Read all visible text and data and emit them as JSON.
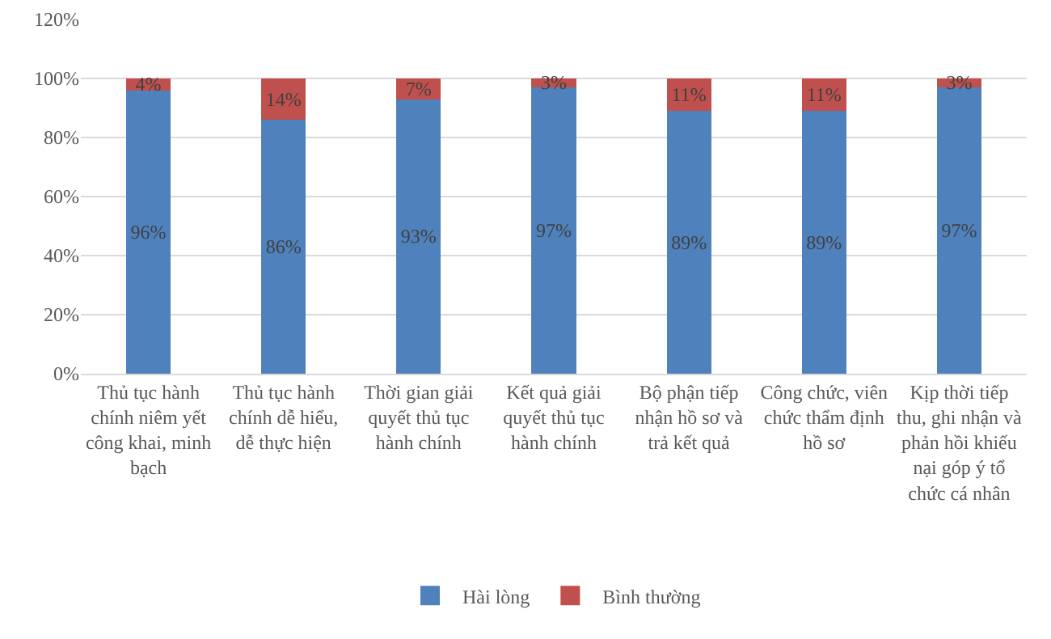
{
  "chart_data": {
    "type": "bar",
    "stacked": true,
    "categories": [
      "Thủ tục hành chính niêm yết công khai, minh bạch",
      "Thủ tục hành chính dễ hiểu, dễ thực hiện",
      "Thời gian giải quyết thủ tục hành chính",
      "Kết quả giải quyết thủ tục hành chính",
      "Bộ phận tiếp nhận hồ sơ và trả kết quả",
      "Công chức, viên chức thẩm định hồ sơ",
      "Kịp thời tiếp thu, ghi nhận và phản hồi khiếu nại góp ý tổ chức cá nhân"
    ],
    "series": [
      {
        "name": "Hài lòng",
        "color": "#4f81bd",
        "values": [
          96,
          86,
          93,
          97,
          89,
          89,
          97
        ],
        "value_labels": [
          "96%",
          "86%",
          "93%",
          "97%",
          "89%",
          "89%",
          "97%"
        ]
      },
      {
        "name": "Bình thường",
        "color": "#c0504d",
        "values": [
          4,
          14,
          7,
          3,
          11,
          11,
          3
        ],
        "value_labels": [
          "4%",
          "14%",
          "7%",
          "3%",
          "11%",
          "11%",
          "3%"
        ]
      }
    ],
    "ylim": [
      0,
      120
    ],
    "yticks": [
      {
        "value": 0,
        "label": "0%"
      },
      {
        "value": 20,
        "label": "20%"
      },
      {
        "value": 40,
        "label": "40%"
      },
      {
        "value": 60,
        "label": "60%"
      },
      {
        "value": 80,
        "label": "80%"
      },
      {
        "value": 100,
        "label": "100%"
      },
      {
        "value": 120,
        "label": "120%"
      }
    ],
    "grid": "y",
    "legend": "bottom"
  }
}
